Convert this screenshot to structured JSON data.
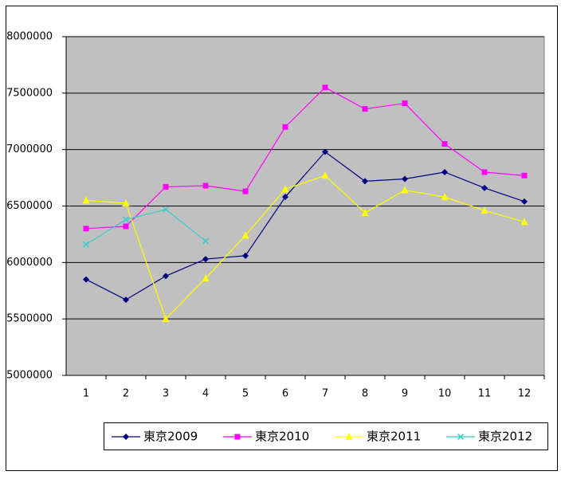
{
  "chart_data": {
    "type": "line",
    "categories": [
      "1",
      "2",
      "3",
      "4",
      "5",
      "6",
      "7",
      "8",
      "9",
      "10",
      "11",
      "12"
    ],
    "series": [
      {
        "name": "東京2009",
        "color": "#000080",
        "marker": "diamond",
        "values": [
          5850000,
          5670000,
          5880000,
          6030000,
          6060000,
          6580000,
          6980000,
          6720000,
          6740000,
          6800000,
          6660000,
          6540000
        ]
      },
      {
        "name": "東京2010",
        "color": "#ff00ff",
        "marker": "square",
        "values": [
          6300000,
          6320000,
          6670000,
          6680000,
          6630000,
          7200000,
          7550000,
          7360000,
          7410000,
          7050000,
          6800000,
          6770000
        ]
      },
      {
        "name": "東京2011",
        "color": "#ffff00",
        "marker": "triangle",
        "values": [
          6550000,
          6525000,
          5500000,
          5860000,
          6240000,
          6650000,
          6770000,
          6440000,
          6640000,
          6580000,
          6460000,
          6360000
        ]
      },
      {
        "name": "東京2012",
        "color": "#33cccc",
        "marker": "x",
        "values": [
          6160000,
          6380000,
          6470000,
          6190000,
          null,
          null,
          null,
          null,
          null,
          null,
          null,
          null
        ]
      }
    ],
    "ylim": [
      5000000,
      8000000
    ],
    "yticks": [
      5000000,
      5500000,
      6000000,
      6500000,
      7000000,
      7500000,
      8000000
    ],
    "grid": true,
    "plot_background": "#c0c0c0",
    "legend": "bottom"
  }
}
